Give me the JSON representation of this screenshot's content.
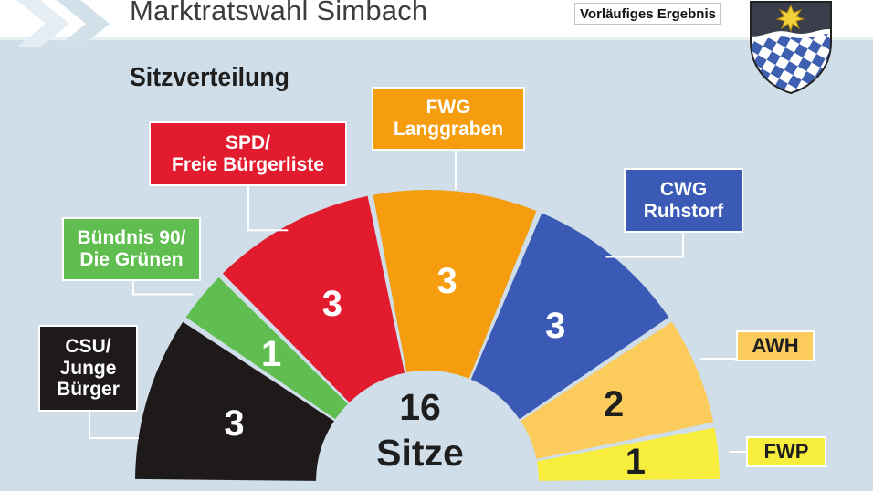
{
  "header": {
    "title": "Marktratswahl Simbach",
    "status": "Vorläufiges Ergebnis"
  },
  "chart_data": {
    "type": "pie",
    "variant": "semicircle-parliament",
    "title": "Sitzverteilung",
    "total_seats": 16,
    "total_number": "16",
    "total_unit": "Sitze",
    "series": [
      {
        "name": "CSU/\nJunge\nBürger",
        "value": 3,
        "color": "#1f1a1a",
        "text_color": "#ffffff",
        "label_bg": "#1f1a1a",
        "label_color": "#ffffff"
      },
      {
        "name": "Bündnis 90/\nDie Grünen",
        "value": 1,
        "color": "#5fbe4f",
        "text_color": "#ffffff",
        "label_bg": "#5fbe4f",
        "label_color": "#ffffff"
      },
      {
        "name": "SPD/\nFreie Bürgerliste",
        "value": 3,
        "color": "#e21b2e",
        "text_color": "#ffffff",
        "label_bg": "#e21b2e",
        "label_color": "#ffffff"
      },
      {
        "name": "FWG\nLanggraben",
        "value": 3,
        "color": "#f59c0f",
        "text_color": "#ffffff",
        "label_bg": "#f59c0f",
        "label_color": "#ffffff"
      },
      {
        "name": "CWG\nRuhstorf",
        "value": 3,
        "color": "#3a5ab5",
        "text_color": "#ffffff",
        "label_bg": "#3a5ab5",
        "label_color": "#ffffff"
      },
      {
        "name": "AWH",
        "value": 2,
        "color": "#fbcb5c",
        "text_color": "#1e1e1e",
        "label_bg": "#fbcb5c",
        "label_color": "#1e1e1e"
      },
      {
        "name": "FWP",
        "value": 1,
        "color": "#f7ed3c",
        "text_color": "#1e1e1e",
        "label_bg": "#f7ed3c",
        "label_color": "#1e1e1e"
      }
    ]
  }
}
